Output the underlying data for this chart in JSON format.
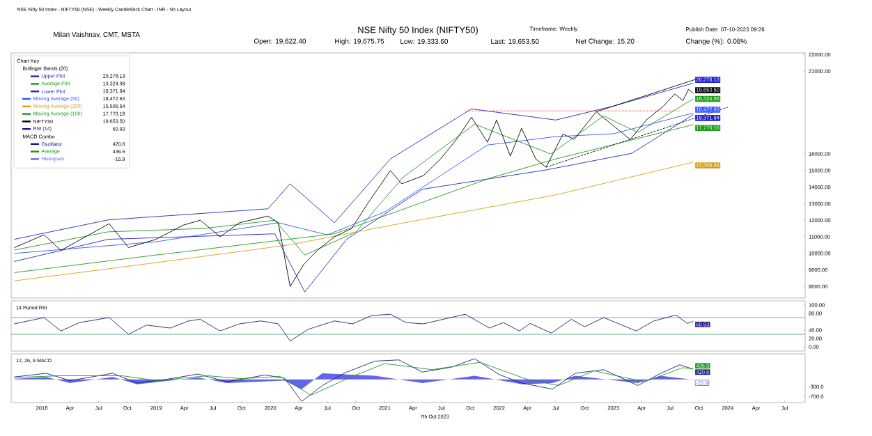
{
  "chart_data": [
    {
      "type": "line",
      "title": "NSE Nifty 50 Index (NIFTY50)",
      "legend_title": "Chart Key",
      "legend": "top left",
      "tick_labels": "y",
      "annotations": [
        "NSE Nifty 50 Index - NIFTY50 (NSE) - Weekly CandleStick Chart - INR - No Layout",
        "Milan Vaishnav, CMT, MSTA",
        "Open: 19,622.40",
        "High: 19,675.75",
        "Low: 19,333.60",
        "Last: 19,653.50",
        "Timeframe: Weekly",
        "Net Change: 15.20",
        "Publish Date: 07-10-2023 09:26",
        "Change (%): 0.08%",
        "Bollinger Bands (20)"
      ],
      "xlim": [
        "2017-09-25",
        "2024-09-05"
      ],
      "ylim": [
        7300,
        22100
      ],
      "yticks": [
        {
          "value": 8000,
          "label": "8000.00"
        },
        {
          "value": 9000,
          "label": "9000.00"
        },
        {
          "value": 10000,
          "label": "10000.00"
        },
        {
          "value": 11000,
          "label": "11000.00"
        },
        {
          "value": 12000,
          "label": "12000.00"
        },
        {
          "value": 13000,
          "label": "13000.00"
        },
        {
          "value": 14000,
          "label": "14000.00"
        },
        {
          "value": 15000,
          "label": "15000.00"
        },
        {
          "value": 16000,
          "label": "16000.00"
        },
        {
          "value": 21000,
          "label": "21000.00"
        },
        {
          "value": 22000,
          "label": "22000.00"
        }
      ],
      "series": [
        {
          "name": "Upper Plot",
          "color": "#2020cc",
          "x": [
            "2017-10-05",
            "2018-08-01",
            "2019-12-24",
            "2020-03-04",
            "2020-07-24",
            "2021-01-19",
            "2021-10-05",
            "2022-07-01",
            "2023-01-01",
            "2023-09-13"
          ],
          "values": [
            10850,
            12020,
            12690,
            14200,
            11850,
            15700,
            18720,
            18050,
            18890,
            20278.13
          ],
          "value_labels": [
            null,
            null,
            null,
            null,
            null,
            null,
            null,
            null,
            null,
            "20,278.13"
          ]
        },
        {
          "name": "Average Plot",
          "color": "#1a9a1a",
          "x": [
            "2017-10-05",
            "2018-08-01",
            "2019-06-01",
            "2020-01-15",
            "2020-04-20",
            "2020-10-01",
            "2021-03-01",
            "2021-10-15",
            "2022-06-15",
            "2022-12-01",
            "2023-03-20",
            "2023-09-13"
          ],
          "values": [
            10200,
            11300,
            11500,
            12000,
            9900,
            11300,
            14600,
            17800,
            16000,
            18300,
            17300,
            19324.98
          ],
          "value_labels": [
            null,
            null,
            null,
            null,
            null,
            null,
            null,
            null,
            null,
            null,
            null,
            "19,324.98"
          ]
        },
        {
          "name": "Lower Plot",
          "color": "#2020cc",
          "x": [
            "2017-10-05",
            "2018-08-01",
            "2020-01-15",
            "2020-04-20",
            "2020-09-01",
            "2021-05-01",
            "2022-06-01",
            "2023-03-01",
            "2023-09-13"
          ],
          "values": [
            9510,
            10850,
            11180,
            7670,
            10850,
            13870,
            15040,
            16040,
            18371.84
          ],
          "value_labels": [
            null,
            null,
            null,
            null,
            null,
            null,
            null,
            null,
            "18,371.84"
          ]
        },
        {
          "name": "Moving Average (50)",
          "color": "#3355ff",
          "x": [
            "2017-10-05",
            "2019-01-01",
            "2020-01-26",
            "2020-07-01",
            "2021-01-01",
            "2021-11-25",
            "2022-07-01",
            "2023-01-01",
            "2023-09-13"
          ],
          "values": [
            10000,
            10700,
            11850,
            11120,
            12500,
            16540,
            17050,
            17220,
            18472.63
          ],
          "value_labels": [
            null,
            null,
            null,
            null,
            null,
            null,
            null,
            null,
            "18,472.63"
          ]
        },
        {
          "name": "Moving Average (200)",
          "color": "#d4a017",
          "x": [
            "2017-10-05",
            "2019-01-01",
            "2020-03-04",
            "2021-01-19",
            "2022-07-01",
            "2023-09-13"
          ],
          "values": [
            8340,
            9440,
            10520,
            11690,
            13530,
            15506.64
          ],
          "value_labels": [
            null,
            null,
            null,
            null,
            null,
            "15,506.64"
          ]
        },
        {
          "name": "Moving Average (100)",
          "color": "#1a9a1a",
          "x": [
            "2017-10-05",
            "2019-01-01",
            "2020-07-24",
            "2021-12-01",
            "2022-07-01",
            "2023-09-13"
          ],
          "values": [
            8840,
            9900,
            11180,
            14530,
            15700,
            17770.16
          ],
          "value_labels": [
            null,
            null,
            null,
            null,
            null,
            "17,770.16"
          ]
        },
        {
          "name": "NIFTY50",
          "color": "#000000",
          "x": [
            "2017-10-05",
            "2018-01-08",
            "2018-03-03",
            "2018-08-04",
            "2018-10-05",
            "2019-01-01",
            "2019-03-28",
            "2019-05-22",
            "2019-07-24",
            "2019-09-24",
            "2019-12-24",
            "2020-01-26",
            "2020-03-04",
            "2020-04-17",
            "2020-05-30",
            "2020-07-24",
            "2020-09-17",
            "2020-11-07",
            "2021-01-19",
            "2021-02-24",
            "2021-05-05",
            "2021-06-28",
            "2021-08-18",
            "2021-10-05",
            "2021-11-25",
            "2021-12-24",
            "2022-02-06",
            "2022-03-14",
            "2022-04-28",
            "2022-05-31",
            "2022-07-24",
            "2022-08-29",
            "2022-11-07",
            "2023-01-01",
            "2023-02-24",
            "2023-04-16",
            "2023-06-10",
            "2023-07-16",
            "2023-08-11",
            "2023-08-29",
            "2023-09-13"
          ],
          "values": [
            10347,
            11120,
            10180,
            11790,
            10350,
            10850,
            11700,
            12000,
            11000,
            11850,
            12250,
            11850,
            8000,
            9340,
            10180,
            11000,
            11500,
            13000,
            15000,
            14200,
            14700,
            15700,
            16880,
            18220,
            16710,
            18050,
            15870,
            17550,
            15700,
            15200,
            17200,
            16880,
            18550,
            17700,
            16880,
            18050,
            18890,
            19630,
            19220,
            19900,
            19653.5
          ],
          "value_labels": [
            null,
            null,
            null,
            null,
            null,
            null,
            null,
            null,
            null,
            null,
            null,
            null,
            null,
            null,
            null,
            null,
            null,
            null,
            null,
            null,
            null,
            null,
            null,
            null,
            null,
            null,
            null,
            null,
            null,
            null,
            null,
            null,
            null,
            null,
            null,
            null,
            null,
            null,
            null,
            null,
            "19,653.50"
          ]
        },
        {
          "type": "line",
          "color": "#000000",
          "x": [
            "2022-11-07",
            "2023-09-20"
          ],
          "values": [
            18550,
            20500
          ]
        },
        {
          "type": "line",
          "color": "#000000",
          "line_style": "dashed",
          "x": [
            "2022-05-31",
            "2024-01-01"
          ],
          "values": [
            15200,
            18820
          ]
        },
        {
          "type": "line",
          "color": "#e0201c",
          "line_style": "dotted",
          "x": [
            "2021-09-15",
            "2023-08-01"
          ],
          "values": [
            18600,
            18600
          ]
        }
      ]
    },
    {
      "type": "line",
      "title": "14 Period RSI",
      "tick_labels": "y",
      "legend": "top left",
      "xlim": [
        "2017-09-25",
        "2024-09-05"
      ],
      "ylim": [
        -10,
        110
      ],
      "yticks": [
        {
          "value": 0,
          "label": "0.00"
        },
        {
          "value": 20,
          "label": "20.00"
        },
        {
          "value": 40,
          "label": "40.00"
        },
        {
          "value": 80,
          "label": "80.00"
        },
        {
          "value": 100,
          "label": "100.00"
        }
      ],
      "ref_lines": [
        {
          "axis": "y",
          "value": 70,
          "color": "#8080a0"
        },
        {
          "axis": "y",
          "value": 30,
          "color": "#3a9a6a"
        }
      ],
      "series": [
        {
          "name": "RSI (14)",
          "color": "#1a1a80",
          "x": [
            "2017-10-05",
            "2018-01-08",
            "2018-03-03",
            "2018-05-01",
            "2018-08-04",
            "2018-10-05",
            "2018-12-01",
            "2019-02-15",
            "2019-04-15",
            "2019-05-22",
            "2019-07-24",
            "2019-09-24",
            "2019-12-01",
            "2020-01-26",
            "2020-03-04",
            "2020-05-01",
            "2020-07-24",
            "2020-09-20",
            "2020-11-20",
            "2021-01-19",
            "2021-03-10",
            "2021-05-05",
            "2021-07-01",
            "2021-09-15",
            "2021-12-01",
            "2022-01-15",
            "2022-03-07",
            "2022-04-10",
            "2022-06-17",
            "2022-08-20",
            "2022-10-01",
            "2022-12-01",
            "2023-03-15",
            "2023-05-10",
            "2023-07-20",
            "2023-08-25",
            "2023-09-13"
          ],
          "values": [
            55,
            70,
            38,
            58,
            70,
            30,
            52,
            45,
            62,
            66,
            38,
            55,
            62,
            55,
            14,
            42,
            62,
            55,
            75,
            78,
            58,
            55,
            65,
            78,
            45,
            58,
            38,
            56,
            33,
            66,
            48,
            70,
            38,
            62,
            76,
            56,
            60.93
          ],
          "value_labels": [
            null,
            null,
            null,
            null,
            null,
            null,
            null,
            null,
            null,
            null,
            null,
            null,
            null,
            null,
            null,
            null,
            null,
            null,
            null,
            null,
            null,
            null,
            null,
            null,
            null,
            null,
            null,
            null,
            null,
            null,
            null,
            null,
            null,
            null,
            null,
            null,
            "60.93"
          ]
        }
      ]
    },
    {
      "type": "line",
      "title": "12, 26, 9 MACD",
      "legend": "top left",
      "xlim": [
        "2017-09-25",
        "2024-09-05"
      ],
      "ylim": [
        -950,
        1050
      ],
      "annotations": [
        "MACD Combo",
        "7th Oct 2023"
      ],
      "yticks": [
        {
          "value": -300,
          "label": "-300.0"
        },
        {
          "value": -700,
          "label": "-700.0"
        }
      ],
      "xticks": [
        {
          "value": "2018-01-01",
          "label": "2018"
        },
        {
          "value": "2018-04-01",
          "label": "Apr"
        },
        {
          "value": "2018-07-01",
          "label": "Jul"
        },
        {
          "value": "2018-10-01",
          "label": "Oct"
        },
        {
          "value": "2019-01-01",
          "label": "2019"
        },
        {
          "value": "2019-04-01",
          "label": "Apr"
        },
        {
          "value": "2019-07-01",
          "label": "Jul"
        },
        {
          "value": "2019-10-01",
          "label": "Oct"
        },
        {
          "value": "2020-01-01",
          "label": "2020"
        },
        {
          "value": "2020-04-01",
          "label": "Apr"
        },
        {
          "value": "2020-07-01",
          "label": "Jul"
        },
        {
          "value": "2020-10-01",
          "label": "Oct"
        },
        {
          "value": "2021-01-01",
          "label": "2021"
        },
        {
          "value": "2021-04-01",
          "label": "Apr"
        },
        {
          "value": "2021-07-01",
          "label": "Jul"
        },
        {
          "value": "2021-10-01",
          "label": "Oct"
        },
        {
          "value": "2022-01-01",
          "label": "2022"
        },
        {
          "value": "2022-04-01",
          "label": "Apr"
        },
        {
          "value": "2022-07-01",
          "label": "Jul"
        },
        {
          "value": "2022-10-01",
          "label": "Oct"
        },
        {
          "value": "2023-01-01",
          "label": "2023"
        },
        {
          "value": "2023-04-01",
          "label": "Apr"
        },
        {
          "value": "2023-07-01",
          "label": "Jul"
        },
        {
          "value": "2023-10-01",
          "label": "Oct"
        },
        {
          "value": "2024-01-01",
          "label": "2024"
        },
        {
          "value": "2024-04-01",
          "label": "Apr"
        },
        {
          "value": "2024-07-01",
          "label": "Jul"
        }
      ],
      "series": [
        {
          "name": "Oscillator",
          "color": "#1a1a80",
          "x": [
            "2017-10-05",
            "2018-01-15",
            "2018-04-01",
            "2018-08-15",
            "2018-11-01",
            "2019-02-01",
            "2019-05-15",
            "2019-08-15",
            "2019-12-15",
            "2020-02-15",
            "2020-04-10",
            "2020-06-15",
            "2020-09-01",
            "2020-12-01",
            "2021-02-15",
            "2021-05-01",
            "2021-08-01",
            "2021-10-15",
            "2022-01-01",
            "2022-03-15",
            "2022-06-20",
            "2022-09-01",
            "2022-12-01",
            "2023-03-20",
            "2023-06-01",
            "2023-08-01",
            "2023-09-13"
          ],
          "values": [
            100,
            250,
            -50,
            250,
            -150,
            0,
            220,
            -100,
            180,
            50,
            -900,
            -250,
            300,
            750,
            800,
            300,
            500,
            850,
            200,
            -150,
            -400,
            250,
            400,
            -250,
            250,
            600,
            420.6
          ],
          "value_labels": [
            null,
            null,
            null,
            null,
            null,
            null,
            null,
            null,
            null,
            null,
            null,
            null,
            null,
            null,
            null,
            null,
            null,
            null,
            null,
            null,
            null,
            null,
            null,
            null,
            null,
            null,
            "420.6"
          ]
        },
        {
          "name": "Average",
          "color": "#1a9a1a",
          "x": [
            "2017-10-05",
            "2018-03-01",
            "2018-09-15",
            "2019-01-01",
            "2019-06-15",
            "2019-10-01",
            "2020-02-01",
            "2020-05-10",
            "2020-09-15",
            "2021-01-01",
            "2021-06-01",
            "2021-11-01",
            "2022-04-01",
            "2022-07-10",
            "2022-11-01",
            "2023-04-10",
            "2023-08-10",
            "2023-09-13"
          ],
          "values": [
            80,
            150,
            150,
            -50,
            150,
            30,
            120,
            -650,
            100,
            650,
            400,
            700,
            0,
            -250,
            350,
            -100,
            480,
            436.5
          ],
          "value_labels": [
            null,
            null,
            null,
            null,
            null,
            null,
            null,
            null,
            null,
            null,
            null,
            null,
            null,
            null,
            null,
            null,
            null,
            "436.5"
          ]
        },
        {
          "name": "Histogram",
          "type": "area",
          "color": "#6464e6",
          "x": [
            "2017-10-05",
            "2018-01-15",
            "2018-04-01",
            "2018-08-15",
            "2018-11-01",
            "2019-05-15",
            "2019-08-15",
            "2020-02-15",
            "2020-04-10",
            "2020-06-15",
            "2020-12-01",
            "2021-05-01",
            "2021-10-15",
            "2022-03-15",
            "2022-06-20",
            "2022-09-01",
            "2023-03-20",
            "2023-06-01",
            "2023-09-13"
          ],
          "values": [
            20,
            100,
            -150,
            100,
            -200,
            80,
            -150,
            -50,
            -400,
            250,
            150,
            -150,
            150,
            -200,
            -150,
            150,
            -150,
            150,
            -15.9
          ],
          "value_labels": [
            null,
            null,
            null,
            null,
            null,
            null,
            null,
            null,
            null,
            null,
            null,
            null,
            null,
            null,
            null,
            null,
            null,
            null,
            "-15.9"
          ]
        }
      ]
    }
  ]
}
